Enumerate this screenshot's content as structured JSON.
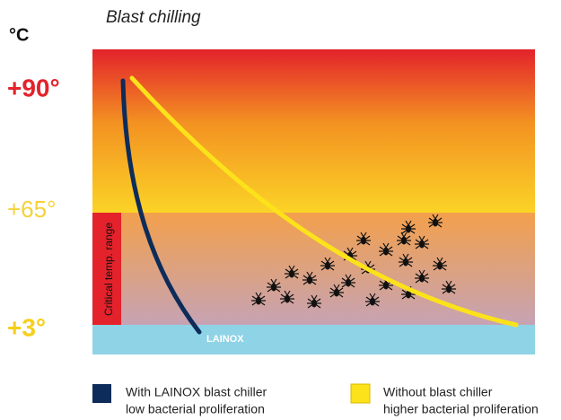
{
  "header": {
    "unit": "°C",
    "title": "Blast chilling"
  },
  "scale": {
    "labels": [
      "+90°",
      "+65°",
      "+3°"
    ]
  },
  "zone": {
    "label": "Critical temp. range"
  },
  "brand": "LAINOX",
  "legend": [
    {
      "line1": "With LAINOX blast chiller",
      "line2": "low bacterial proliferation"
    },
    {
      "line1": "Without blast chiller",
      "line2": "higher bacterial proliferation"
    }
  ]
}
